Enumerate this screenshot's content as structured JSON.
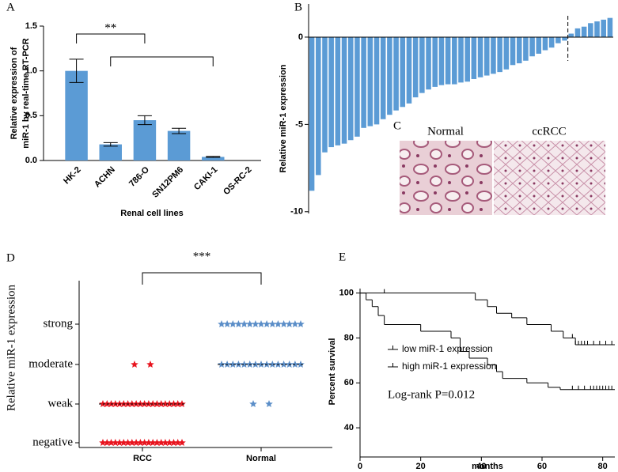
{
  "chart_data": [
    {
      "type": "bar",
      "label": "A",
      "categories": [
        "HK-2",
        "ACHN",
        "786-O",
        "SN12PM6",
        "CAKI-1",
        "OS-RC-2"
      ],
      "values": [
        1.0,
        0.18,
        0.45,
        0.33,
        0.04,
        0
      ],
      "errors": [
        0.13,
        0.02,
        0.05,
        0.03,
        0.005,
        0
      ],
      "color": "#5b9bd5",
      "ylim": [
        0,
        1.5
      ],
      "yticks": [
        {
          "value": 0,
          "label": "0.0"
        },
        0.5,
        {
          "value": 1,
          "label": "1.0"
        },
        1.5
      ],
      "xlabel": "Renal cell lines",
      "ylabel": [
        "Relative  expression of",
        "miR-1 by real-time RT-PCR"
      ],
      "annotations": [
        {
          "text": "**",
          "span": [
            0,
            2
          ]
        },
        {
          "span": [
            1,
            4
          ]
        }
      ]
    },
    {
      "type": "waterfall",
      "label": "B",
      "values": [
        -8.8,
        -7.9,
        -6.6,
        -6.3,
        -6.2,
        -6.1,
        -5.9,
        -5.7,
        -5.2,
        -5.1,
        -5.0,
        -4.7,
        -4.45,
        -4.2,
        -4.0,
        -3.8,
        -3.45,
        -3.2,
        -3.0,
        -2.85,
        -2.75,
        -2.7,
        -2.7,
        -2.6,
        -2.55,
        -2.4,
        -2.3,
        -2.2,
        -2.1,
        -2.0,
        -1.85,
        -1.6,
        -1.5,
        -1.35,
        -1.1,
        -0.95,
        -0.75,
        -0.6,
        -0.35,
        -0.2,
        0.2,
        0.5,
        0.6,
        0.8,
        0.9,
        1.0,
        1.1
      ],
      "color": "#5b9bd5",
      "ylim": [
        -10.1,
        1.9
      ],
      "yticks": [
        -10,
        -5,
        0
      ],
      "ylabel": "Relative miR-1 expression"
    },
    {
      "type": "image",
      "label": "C",
      "panels": [
        "Normal",
        "ccRCC"
      ]
    },
    {
      "type": "dot",
      "label": "D",
      "ylevels": [
        "negative",
        "weak",
        "moderate",
        "strong"
      ],
      "series": [
        {
          "name": "RCC",
          "color": "#e8141e",
          "counts": [
            20,
            20,
            2,
            0
          ],
          "median": 1
        },
        {
          "name": "Normal",
          "color": "#5b8ec8",
          "counts": [
            0,
            2,
            15,
            15
          ],
          "median": 2
        }
      ],
      "ylabel": "Relative miR-1 expression",
      "annotation": "***"
    },
    {
      "type": "survival",
      "label": "E",
      "series": [
        {
          "name": "low miR-1 expression",
          "color": "#d7191c",
          "x": [
            0,
            2,
            4,
            6,
            8,
            20,
            30,
            33,
            36,
            42,
            45,
            47,
            55,
            62,
            66,
            84
          ],
          "values": [
            100,
            97,
            94,
            90,
            86,
            83,
            80,
            74,
            71,
            68,
            65,
            62,
            60,
            58,
            57,
            57
          ],
          "censored": [
            70,
            72,
            74,
            76,
            77,
            78,
            79,
            80,
            81,
            82,
            83
          ]
        },
        {
          "name": "high miR-1 expression",
          "color": "#6a9fd4",
          "x": [
            0,
            38,
            42,
            45,
            50,
            55,
            63,
            67,
            71,
            84
          ],
          "values": [
            100,
            97,
            94,
            91,
            89,
            86,
            83,
            80,
            77,
            77
          ],
          "censored": [
            8,
            70,
            71,
            72,
            73,
            74,
            75,
            77,
            79,
            81,
            83
          ]
        }
      ],
      "xlim": [
        0,
        84
      ],
      "xticks": [
        0,
        20,
        40,
        60,
        80
      ],
      "ylim": [
        27,
        102
      ],
      "yticks": [
        40,
        60,
        80,
        100
      ],
      "xlabel": "months",
      "ylabel": "Percent survival",
      "annotation": "Log-rank P=0.012"
    }
  ]
}
